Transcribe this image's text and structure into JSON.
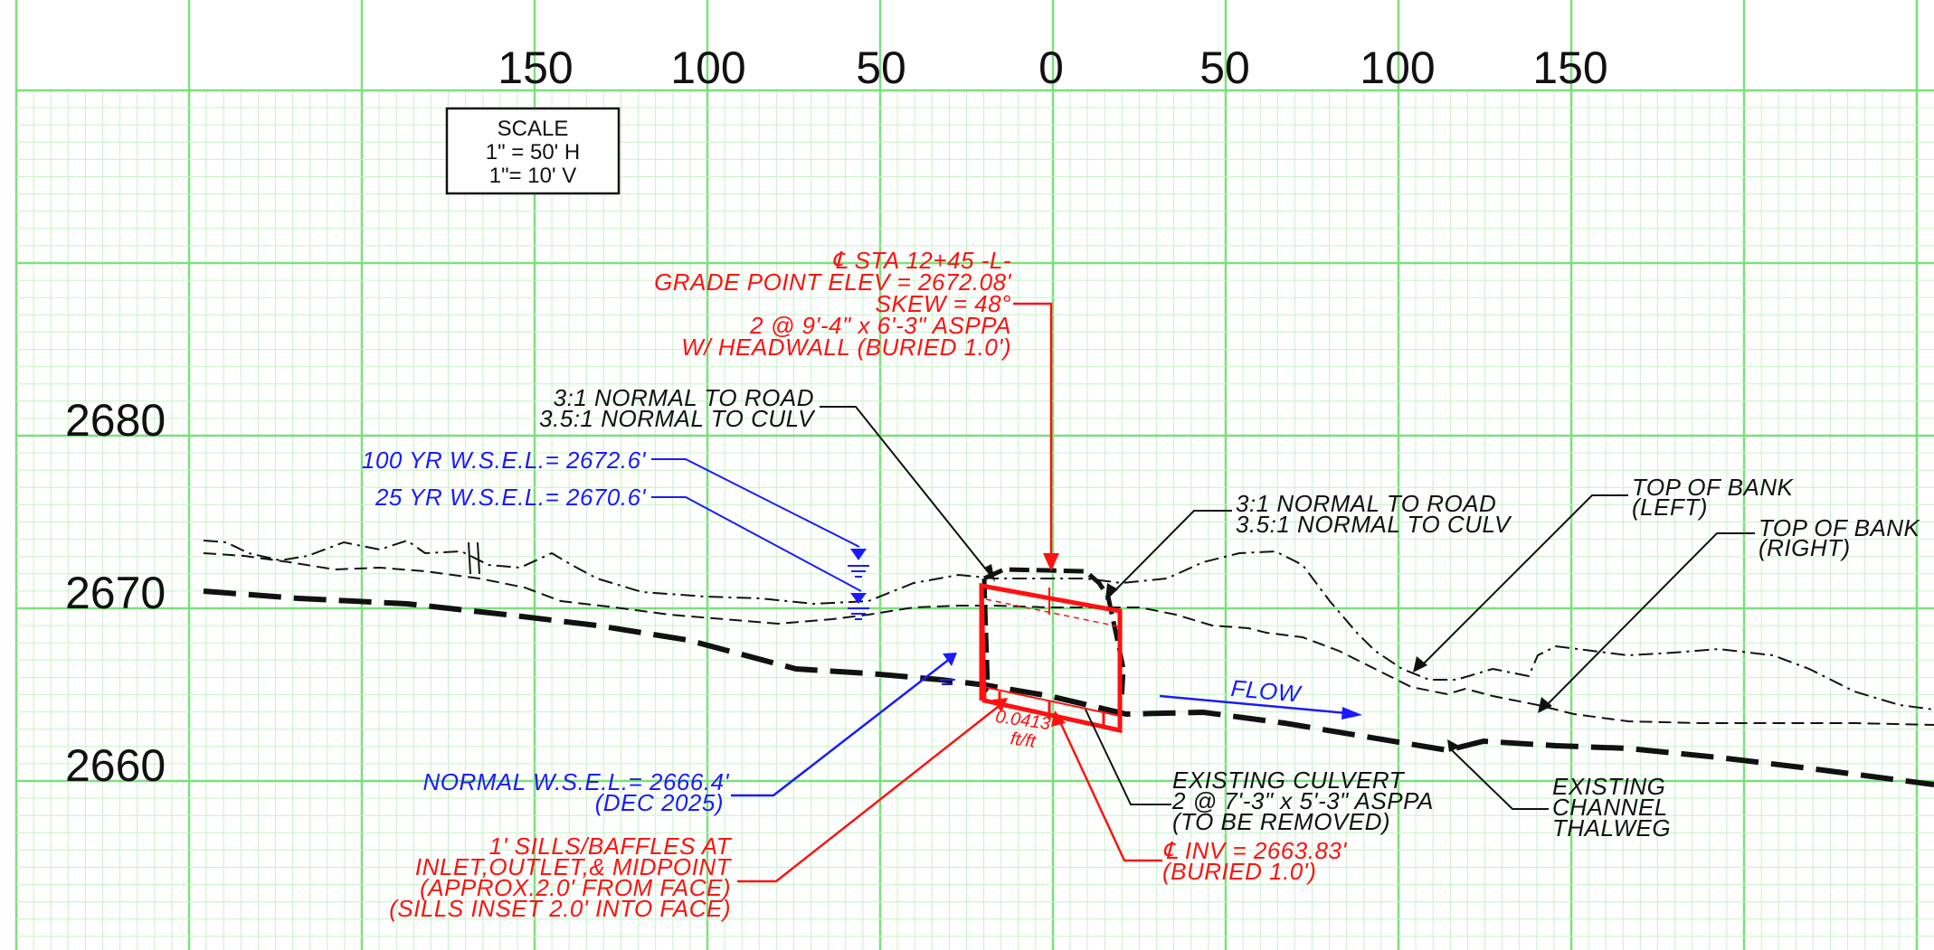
{
  "axes": {
    "x_ticks": [
      "150",
      "100",
      "50",
      "0",
      "50",
      "100",
      "150"
    ],
    "y_ticks": [
      "2680",
      "2670",
      "2660"
    ]
  },
  "scale_box": {
    "line1": "SCALE",
    "line2": "1\" = 50' H",
    "line3": "1\"= 10' V"
  },
  "annotations": {
    "grade_point": {
      "line1": "℄ STA 12+45 -L-",
      "line2": "GRADE POINT ELEV = 2672.08'",
      "line3": "SKEW = 48°",
      "line4": "2 @ 9'-4\" x 6'-3\" ASPPA",
      "line5": "W/ HEADWALL (BURIED 1.0')"
    },
    "slope_left": {
      "line1": "3:1 NORMAL TO ROAD",
      "line2": "3.5:1 NORMAL TO CULV"
    },
    "slope_right": {
      "line1": "3:1 NORMAL TO ROAD",
      "line2": "3.5:1 NORMAL TO CULV"
    },
    "wsel_100": "100 YR W.S.E.L.= 2672.6'",
    "wsel_25": "25 YR W.S.E.L.= 2670.6'",
    "top_bank_left": {
      "line1": "TOP OF BANK",
      "line2": "(LEFT)"
    },
    "top_bank_right": {
      "line1": "TOP OF BANK",
      "line2": "(RIGHT)"
    },
    "flow": "FLOW",
    "normal_wsel": {
      "line1": "NORMAL W.S.E.L.= 2666.4'",
      "line2": "(DEC 2025)"
    },
    "sills": {
      "line1": "1' SILLS/BAFFLES AT",
      "line2": "INLET,OUTLET,& MIDPOINT",
      "line3": "(APPROX.2.0' FROM FACE)",
      "line4": "(SILLS INSET 2.0' INTO FACE)"
    },
    "slope_value": {
      "line1": "0.0413",
      "line2": "ft/ft"
    },
    "existing_culvert": {
      "line1": "EXISTING CULVERT",
      "line2": "2 @ 7'-3\" x 5'-3\" ASPPA",
      "line3": "(TO BE REMOVED)"
    },
    "invert": {
      "line1": "℄ INV = 2663.83'",
      "line2": "(BURIED 1.0')"
    },
    "thalweg": {
      "line1": "EXISTING",
      "line2": "CHANNEL",
      "line3": "THALWEG"
    }
  },
  "colors": {
    "grid_major": "#7be07b",
    "grid_minor": "#c6f2c6",
    "proposed": "#ff1111",
    "water": "#1a1aff",
    "ground": "#111111"
  }
}
